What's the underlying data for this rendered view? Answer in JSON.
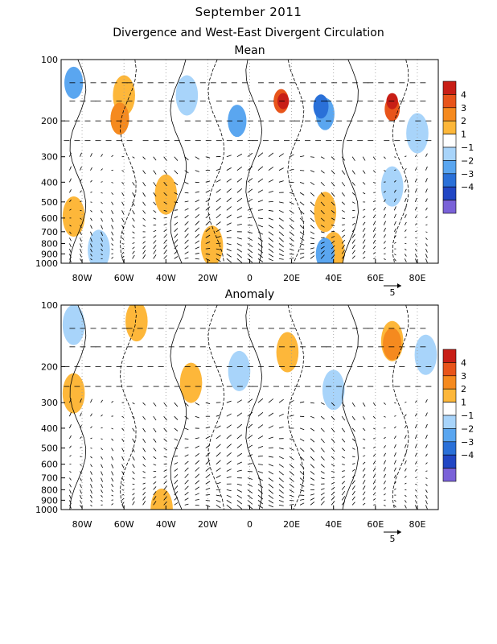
{
  "header": {
    "title": "September 2011",
    "subtitle": "Divergence and West-East Divergent Circulation"
  },
  "colors": {
    "pos1": "#fdb73a",
    "pos2": "#f58a1f",
    "pos3": "#e8541a",
    "pos4": "#c81e16",
    "neg1": "#a8d4fa",
    "neg2": "#5aa6f0",
    "neg3": "#2a70d8",
    "neg4": "#2146c4",
    "neg5": "#7a62d8"
  },
  "chart_data": [
    {
      "type": "heatmap",
      "title": "Mean",
      "x_ticks": [
        "80W",
        "60W",
        "40W",
        "20W",
        "0",
        "20E",
        "40E",
        "60E",
        "80E"
      ],
      "x_tick_values": [
        -80,
        -60,
        -40,
        -20,
        0,
        20,
        40,
        60,
        80
      ],
      "xlim": [
        -90,
        90
      ],
      "y_ticks": [
        "100",
        "200",
        "300",
        "400",
        "500",
        "600",
        "700",
        "800",
        "900",
        "1000"
      ],
      "y_tick_values": [
        100,
        200,
        300,
        400,
        500,
        600,
        700,
        800,
        900,
        1000
      ],
      "ylim": [
        1000,
        100
      ],
      "y_scale": "log",
      "colorbar_labels": [
        "4",
        "3",
        "2",
        "1",
        "−1",
        "−2",
        "−3",
        "−4"
      ],
      "vector_ref": "5",
      "blobs": [
        {
          "lon": -84,
          "p": 130,
          "level": -2
        },
        {
          "lon": -62,
          "p": 195,
          "level": 2
        },
        {
          "lon": -60,
          "p": 150,
          "level": 1
        },
        {
          "lon": -30,
          "p": 150,
          "level": -1
        },
        {
          "lon": -6,
          "p": 200,
          "level": -2
        },
        {
          "lon": 16,
          "p": 160,
          "level": 4
        },
        {
          "lon": 15,
          "p": 160,
          "level": 3
        },
        {
          "lon": 36,
          "p": 185,
          "level": -2
        },
        {
          "lon": 34,
          "p": 170,
          "level": -3
        },
        {
          "lon": 68,
          "p": 160,
          "level": 4
        },
        {
          "lon": 68,
          "p": 175,
          "level": 3
        },
        {
          "lon": 80,
          "p": 230,
          "level": -1
        },
        {
          "lon": -84,
          "p": 590,
          "level": 1
        },
        {
          "lon": -40,
          "p": 460,
          "level": 1
        },
        {
          "lon": -18,
          "p": 820,
          "level": 1
        },
        {
          "lon": 36,
          "p": 560,
          "level": 1
        },
        {
          "lon": 40,
          "p": 880,
          "level": 1
        },
        {
          "lon": 36,
          "p": 900,
          "level": -2
        },
        {
          "lon": 68,
          "p": 420,
          "level": -1
        },
        {
          "lon": -72,
          "p": 860,
          "level": -1
        }
      ]
    },
    {
      "type": "heatmap",
      "title": "Anomaly",
      "x_ticks": [
        "80W",
        "60W",
        "40W",
        "20W",
        "0",
        "20E",
        "40E",
        "60E",
        "80E"
      ],
      "x_tick_values": [
        -80,
        -60,
        -40,
        -20,
        0,
        20,
        40,
        60,
        80
      ],
      "xlim": [
        -90,
        90
      ],
      "y_ticks": [
        "100",
        "200",
        "300",
        "400",
        "500",
        "600",
        "700",
        "800",
        "900",
        "1000"
      ],
      "y_tick_values": [
        100,
        200,
        300,
        400,
        500,
        600,
        700,
        800,
        900,
        1000
      ],
      "ylim": [
        1000,
        100
      ],
      "y_scale": "log",
      "colorbar_labels": [
        "4",
        "3",
        "2",
        "1",
        "−1",
        "−2",
        "−3",
        "−4"
      ],
      "vector_ref": "5",
      "blobs": [
        {
          "lon": -84,
          "p": 125,
          "level": -1
        },
        {
          "lon": -54,
          "p": 120,
          "level": 1
        },
        {
          "lon": 18,
          "p": 170,
          "level": 1
        },
        {
          "lon": 68,
          "p": 150,
          "level": 1
        },
        {
          "lon": 68,
          "p": 155,
          "level": 2
        },
        {
          "lon": 84,
          "p": 175,
          "level": -1
        },
        {
          "lon": -5,
          "p": 210,
          "level": -1
        },
        {
          "lon": -84,
          "p": 270,
          "level": 1
        },
        {
          "lon": -28,
          "p": 240,
          "level": 1
        },
        {
          "lon": 40,
          "p": 260,
          "level": -1
        },
        {
          "lon": -42,
          "p": 990,
          "level": 1
        }
      ]
    }
  ]
}
